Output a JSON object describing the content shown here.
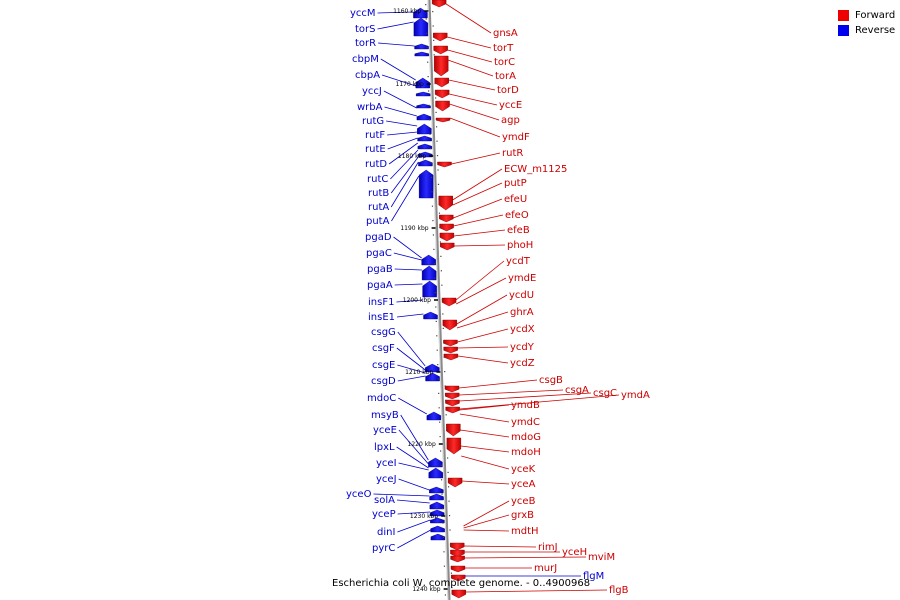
{
  "legend": {
    "forward_label": "Forward",
    "reverse_label": "Reverse",
    "forward_color": "#ff0000",
    "reverse_color": "#0000ff"
  },
  "caption": "Escherichia coli W, complete genome. - 0..4900968",
  "ticks": [
    "1160 kbp",
    "1170 kbp",
    "1180 kbp",
    "1190 kbp",
    "1200 kbp",
    "1210 kbp",
    "1220 kbp",
    "1230 kbp",
    "1240 kbp"
  ],
  "reverse_genes": [
    "yccM",
    "torS",
    "torR",
    "cbpM",
    "cbpA",
    "yccJ",
    "wrbA",
    "rutG",
    "rutF",
    "rutE",
    "rutD",
    "rutC",
    "rutB",
    "rutA",
    "putA",
    "pgaD",
    "pgaC",
    "pgaB",
    "pgaA",
    "insF1",
    "insE1",
    "csgG",
    "csgF",
    "csgE",
    "csgD",
    "mdoC",
    "msyB",
    "yceE",
    "lpxL",
    "yceI",
    "yceJ",
    "yceO",
    "solA",
    "yceP",
    "dinI",
    "pyrC",
    "flgM"
  ],
  "forward_genes": [
    "gnsA",
    "torT",
    "torC",
    "torA",
    "torD",
    "yccE",
    "agp",
    "ymdF",
    "rutR",
    "ECW_m1125",
    "putP",
    "efeU",
    "efeO",
    "efeB",
    "phoH",
    "ycdT",
    "ymdE",
    "ycdU",
    "ghrA",
    "ycdX",
    "ycdY",
    "ycdZ",
    "csgB",
    "csgA",
    "csgC",
    "ymdA",
    "ymdB",
    "ymdC",
    "mdoG",
    "mdoH",
    "yceK",
    "yceA",
    "yceB",
    "grxB",
    "mdtH",
    "rimJ",
    "yceH",
    "mviM",
    "murJ",
    "flgB"
  ],
  "feature_colors": {
    "forward": "#ff0000",
    "reverse": "#0000ff",
    "forward_label": "#cc0000",
    "reverse_label": "#0000cc",
    "axis": "#999999"
  }
}
